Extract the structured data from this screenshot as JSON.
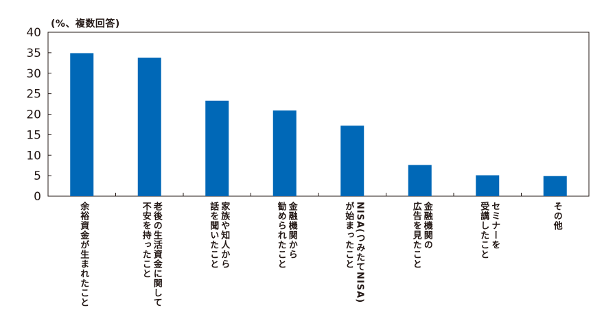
{
  "chart_data": {
    "type": "bar",
    "unit_label": "(%、複数回答)",
    "categories": [
      [
        "余裕資金が生まれたこと"
      ],
      [
        "老後の生活資金に関して",
        "不安を持ったこと"
      ],
      [
        "家族や知人から",
        "話を聞いたこと"
      ],
      [
        "金融機関から",
        "勧められたこと"
      ],
      [
        "NISA(つみたてNISA)",
        "が始まったこと"
      ],
      [
        "金融機関の",
        "広告を見たこと"
      ],
      [
        "セミナーを",
        "受講したこと"
      ],
      [
        "その他"
      ]
    ],
    "values": [
      34.9,
      33.8,
      23.3,
      20.9,
      17.2,
      7.6,
      5.1,
      4.9
    ],
    "ylim": [
      0,
      40
    ],
    "yticks": [
      0,
      5,
      10,
      15,
      20,
      25,
      30,
      35,
      40
    ],
    "grid": false,
    "bar_color": "#0068b7",
    "axis_color": "#231815"
  }
}
